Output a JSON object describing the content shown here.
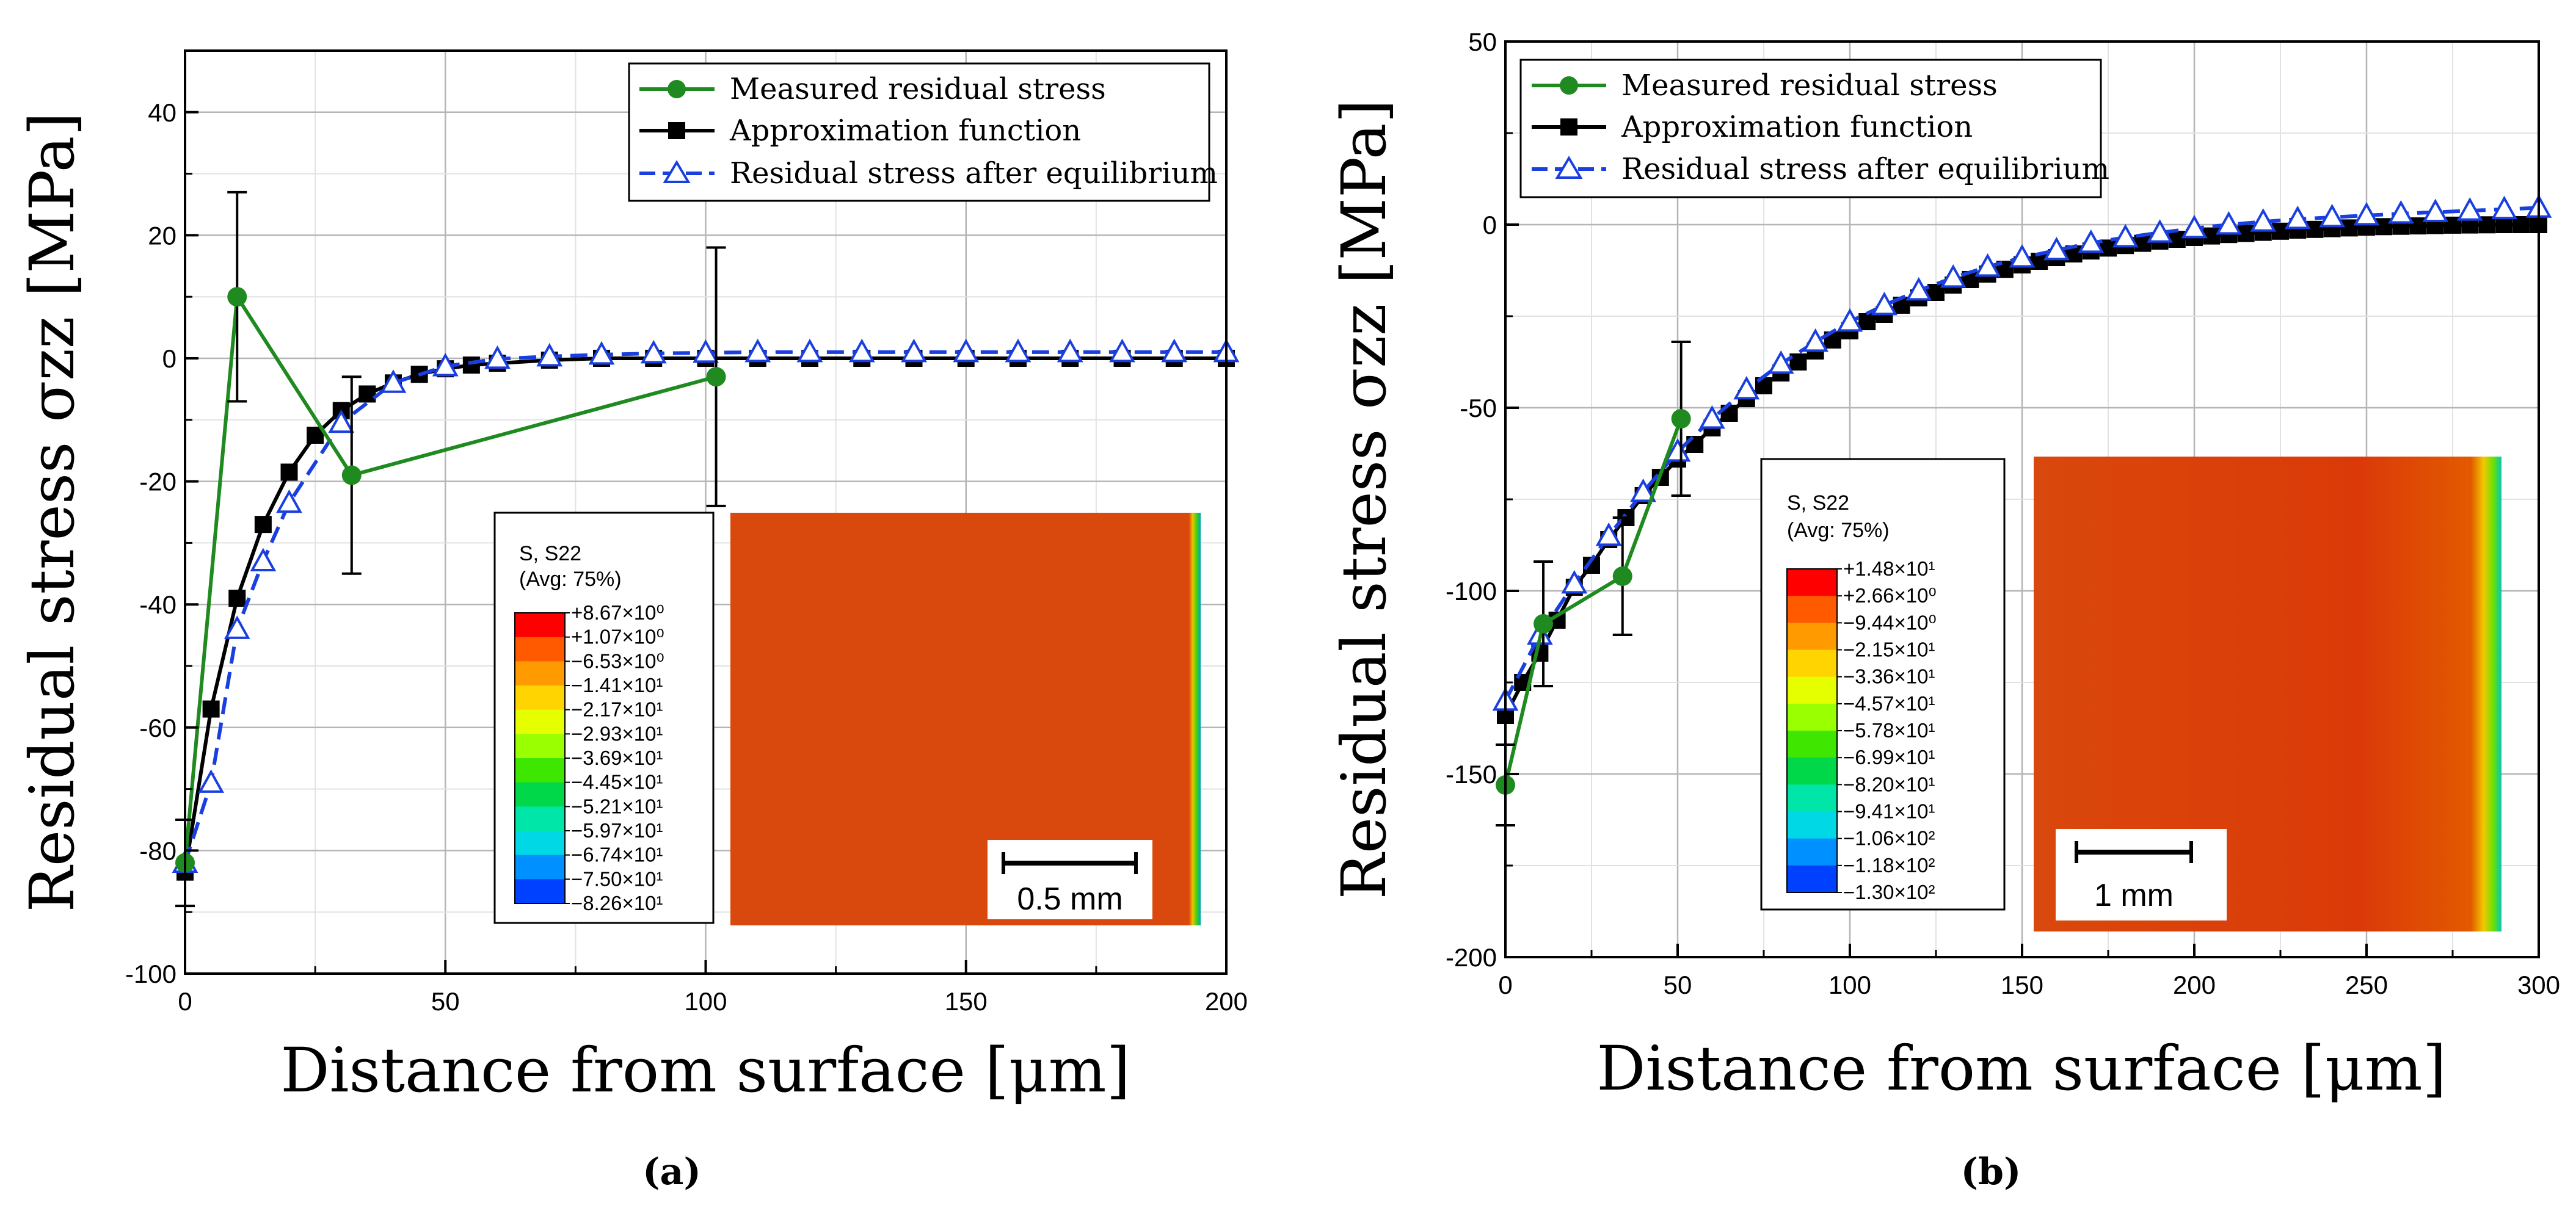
{
  "chart_data": [
    {
      "id": "a",
      "type": "line",
      "caption": "(a)",
      "xlabel": "Distance from surface [μm]",
      "ylabel": "Residual stress σzz [MPa]",
      "xlim": [
        0,
        200
      ],
      "ylim": [
        -100,
        50
      ],
      "xticks": [
        0,
        50,
        100,
        150,
        200
      ],
      "yticks": [
        -100,
        -80,
        -60,
        -40,
        -20,
        0,
        20,
        40
      ],
      "grid": true,
      "legend_position": "top-right",
      "series": [
        {
          "name": "Measured residual stress",
          "color": "#1f8a1f",
          "marker": "circle",
          "x": [
            0,
            10,
            32,
            102
          ],
          "y": [
            -82,
            10,
            -19,
            -3
          ],
          "err": [
            7,
            17,
            16,
            21
          ]
        },
        {
          "name": "Approximation function",
          "color": "#000000",
          "marker": "square",
          "x": [
            0,
            5,
            10,
            15,
            20,
            25,
            30,
            35,
            40,
            45,
            50,
            55,
            60,
            70,
            80,
            90,
            100,
            110,
            120,
            130,
            140,
            150,
            160,
            170,
            180,
            190,
            200
          ],
          "y": [
            -83.5,
            -57,
            -39,
            -27,
            -18.5,
            -12.5,
            -8.5,
            -5.8,
            -4,
            -2.6,
            -1.7,
            -1.1,
            -0.8,
            -0.3,
            0,
            0,
            0,
            0,
            0,
            0,
            0,
            0,
            0,
            0,
            0,
            0,
            0
          ]
        },
        {
          "name": "Residual stress after equilibrium",
          "color": "#1a3fe0",
          "marker": "triangle",
          "dashed": true,
          "x": [
            0,
            5,
            10,
            15,
            20,
            30,
            40,
            50,
            60,
            70,
            80,
            90,
            100,
            110,
            120,
            130,
            140,
            150,
            160,
            170,
            180,
            190,
            200
          ],
          "y": [
            -82,
            -69,
            -44,
            -33,
            -23.5,
            -10.5,
            -4,
            -1.3,
            -0.1,
            0.3,
            0.6,
            0.8,
            0.9,
            1,
            1,
            1,
            1,
            1,
            1,
            1,
            1,
            1,
            1
          ]
        }
      ],
      "inset": {
        "title": "S, S22",
        "subtitle": "(Avg: 75%)",
        "colorbar_labels": [
          "+8.67×10⁰",
          "+1.07×10⁰",
          "−6.53×10⁰",
          "−1.41×10¹",
          "−2.17×10¹",
          "−2.93×10¹",
          "−3.69×10¹",
          "−4.45×10¹",
          "−5.21×10¹",
          "−5.97×10¹",
          "−6.74×10¹",
          "−7.50×10¹",
          "−8.26×10¹"
        ],
        "scale_bar": "0.5 mm"
      }
    },
    {
      "id": "b",
      "type": "line",
      "caption": "(b)",
      "xlabel": "Distance from surface [μm]",
      "ylabel": "Residual stress σzz [MPa]",
      "xlim": [
        0,
        300
      ],
      "ylim": [
        -200,
        50
      ],
      "xticks": [
        0,
        50,
        100,
        150,
        200,
        250,
        300
      ],
      "yticks": [
        -200,
        -150,
        -100,
        -50,
        0,
        50
      ],
      "grid": true,
      "legend_position": "top-left",
      "series": [
        {
          "name": "Measured residual stress",
          "color": "#1f8a1f",
          "marker": "circle",
          "x": [
            0,
            11,
            34,
            51
          ],
          "y": [
            -153,
            -109,
            -96,
            -53
          ],
          "err": [
            11,
            17,
            16,
            21
          ]
        },
        {
          "name": "Approximation function",
          "color": "#000000",
          "marker": "square",
          "x": [
            0,
            5,
            10,
            15,
            20,
            25,
            30,
            35,
            40,
            45,
            50,
            55,
            60,
            65,
            70,
            75,
            80,
            85,
            90,
            95,
            100,
            105,
            110,
            115,
            120,
            125,
            130,
            135,
            140,
            145,
            150,
            155,
            160,
            165,
            170,
            175,
            180,
            185,
            190,
            195,
            200,
            205,
            210,
            215,
            220,
            225,
            230,
            235,
            240,
            245,
            250,
            255,
            260,
            265,
            270,
            275,
            280,
            285,
            290,
            295,
            300
          ],
          "y": [
            -134,
            -125,
            -117,
            -108,
            -99,
            -93,
            -86,
            -80,
            -74,
            -69,
            -64,
            -60,
            -55.5,
            -51.5,
            -47.5,
            -44,
            -40.5,
            -37.5,
            -34.5,
            -31.5,
            -29,
            -26.5,
            -24.5,
            -22,
            -20,
            -18.5,
            -16.5,
            -15,
            -13.5,
            -12.2,
            -11,
            -10,
            -9,
            -8,
            -7.2,
            -6.4,
            -5.7,
            -5.1,
            -4.5,
            -4,
            -3.5,
            -3.1,
            -2.7,
            -2.4,
            -2.1,
            -1.8,
            -1.5,
            -1.3,
            -1.1,
            -0.9,
            -0.7,
            -0.55,
            -0.45,
            -0.35,
            -0.25,
            -0.15,
            -0.1,
            -0.05,
            0,
            0,
            0
          ]
        },
        {
          "name": "Residual stress after equilibrium",
          "color": "#1a3fe0",
          "marker": "triangle",
          "dashed": true,
          "x": [
            0,
            10,
            20,
            30,
            40,
            50,
            60,
            70,
            80,
            90,
            100,
            110,
            120,
            130,
            140,
            150,
            160,
            170,
            180,
            190,
            200,
            210,
            220,
            230,
            240,
            250,
            260,
            270,
            280,
            290,
            300
          ],
          "y": [
            -130,
            -112,
            -98,
            -85,
            -73,
            -62,
            -53,
            -45,
            -38,
            -32,
            -26.5,
            -22,
            -18,
            -14.5,
            -11.5,
            -9,
            -7,
            -5,
            -3.5,
            -2.2,
            -1,
            0,
            0.8,
            1.5,
            2,
            2.5,
            3,
            3.4,
            3.8,
            4.2,
            4.6
          ]
        }
      ],
      "inset": {
        "title": "S, S22",
        "subtitle": "(Avg: 75%)",
        "colorbar_labels": [
          "+1.48×10¹",
          "+2.66×10⁰",
          "−9.44×10⁰",
          "−2.15×10¹",
          "−3.36×10¹",
          "−4.57×10¹",
          "−5.78×10¹",
          "−6.99×10¹",
          "−8.20×10¹",
          "−9.41×10¹",
          "−1.06×10²",
          "−1.18×10²",
          "−1.30×10²"
        ],
        "scale_bar": "1 mm"
      }
    }
  ],
  "colors": {
    "contour_main": "#d9420a",
    "grid": "#cfcfcf",
    "colorbar": [
      "#ff0000",
      "#ff5a00",
      "#ff9a00",
      "#ffd400",
      "#e6ff00",
      "#9aff00",
      "#3fe600",
      "#00d84a",
      "#00e6a8",
      "#00d8e6",
      "#0090ff",
      "#0040ff",
      "#0000ff"
    ]
  }
}
